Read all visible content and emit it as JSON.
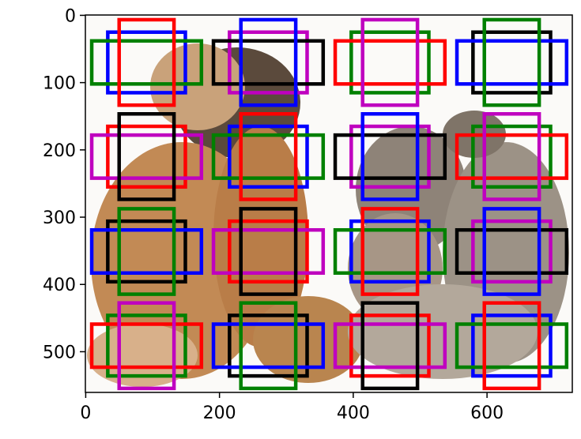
{
  "chart_data": {
    "type": "anchors",
    "xlim": [
      -0.5,
      727.5
    ],
    "ylim": [
      560.5,
      -0.5
    ],
    "xticks": [
      0,
      200,
      400,
      600
    ],
    "yticks": [
      0,
      100,
      200,
      300,
      400,
      500
    ],
    "centers_x": [
      91,
      273,
      455,
      637
    ],
    "centers_y": [
      70,
      210,
      351,
      491
    ],
    "sizes": [
      {
        "w": 116,
        "h": 90
      },
      {
        "w": 164,
        "h": 64
      },
      {
        "w": 82,
        "h": 127
      }
    ],
    "colors": [
      "#0000ff",
      "#008000",
      "#ff0000",
      "#bf00bf",
      "#000000"
    ]
  }
}
